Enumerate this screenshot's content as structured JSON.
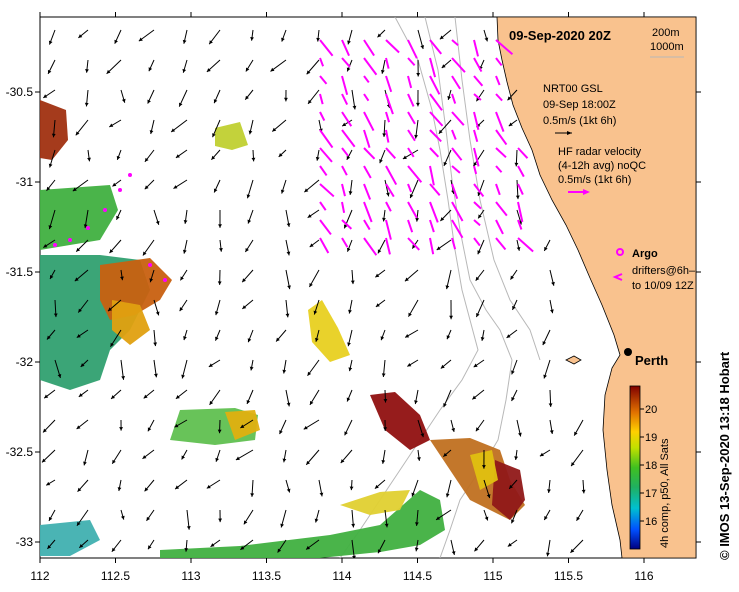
{
  "map": {
    "title": "09-Sep-2020 20Z",
    "depth_legend": [
      "200m",
      "1000m"
    ],
    "x_ticks": [
      {
        "value": 112,
        "label": "112"
      },
      {
        "value": 112.5,
        "label": "112.5"
      },
      {
        "value": 113,
        "label": "113"
      },
      {
        "value": 113.5,
        "label": "113.5"
      },
      {
        "value": 114,
        "label": "114"
      },
      {
        "value": 114.5,
        "label": "114.5"
      },
      {
        "value": 115,
        "label": "115"
      },
      {
        "value": 115.5,
        "label": "115.5"
      },
      {
        "value": 116,
        "label": "116"
      }
    ],
    "y_ticks": [
      {
        "value": -30.5,
        "label": "-30.5"
      },
      {
        "value": -31,
        "label": "-31"
      },
      {
        "value": -31.5,
        "label": "-31.5"
      },
      {
        "value": -32,
        "label": "-32"
      },
      {
        "value": -32.5,
        "label": "-32.5"
      },
      {
        "value": -33,
        "label": "-33"
      }
    ],
    "legend_nrt": {
      "line1": "NRT00 GSL",
      "line2": "09-Sep 18:00Z",
      "line3": "0.5m/s (1kt 6h)"
    },
    "legend_hf": {
      "line1": "HF radar velocity",
      "line2": "(4-12h avg) noQC",
      "line3": "0.5m/s (1kt 6h)"
    },
    "argo_label": "Argo",
    "drifters_line1": "drifters@6h–",
    "drifters_line2": "to 10/09 12Z",
    "city_label": "Perth",
    "colorbar": {
      "ticks": [
        "20",
        "19",
        "18",
        "17",
        "16"
      ],
      "label": "4h comp, p50, All Sats"
    },
    "credit": "©  IMOS 13-Sep-2020 13:18 Hobart",
    "colors": {
      "land": "#f9c28e",
      "hf_arrow": "#ff00ff",
      "model_arrow": "#000000",
      "isobath": "#b8b8b8"
    }
  }
}
